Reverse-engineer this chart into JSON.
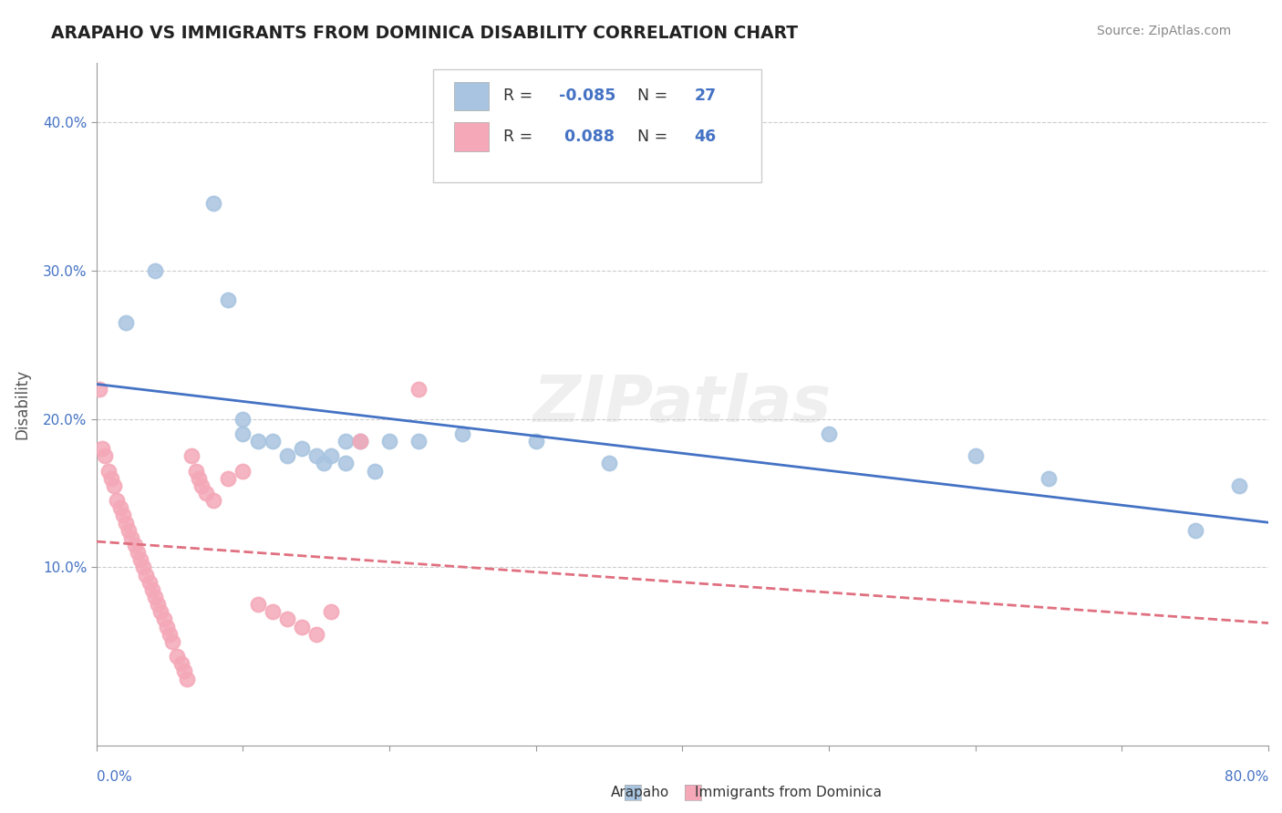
{
  "title": "ARAPAHO VS IMMIGRANTS FROM DOMINICA DISABILITY CORRELATION CHART",
  "source_text": "Source: ZipAtlas.com",
  "ylabel": "Disability",
  "xlim": [
    0,
    0.8
  ],
  "ylim": [
    -0.02,
    0.44
  ],
  "yticks": [
    0.1,
    0.2,
    0.3,
    0.4
  ],
  "ytick_labels": [
    "10.0%",
    "20.0%",
    "30.0%",
    "40.0%"
  ],
  "arapaho_color": "#a8c4e0",
  "dominica_color": "#f4a8b8",
  "arapaho_line_color": "#4472c4",
  "dominica_line_color": "#e07080",
  "background_color": "#ffffff",
  "grid_color": "#cccccc",
  "arapaho_x": [
    0.02,
    0.04,
    0.08,
    0.09,
    0.1,
    0.1,
    0.11,
    0.12,
    0.13,
    0.14,
    0.15,
    0.155,
    0.16,
    0.17,
    0.17,
    0.18,
    0.19,
    0.2,
    0.22,
    0.25,
    0.3,
    0.35,
    0.5,
    0.6,
    0.65,
    0.75,
    0.78
  ],
  "arapaho_y": [
    0.265,
    0.3,
    0.345,
    0.28,
    0.2,
    0.19,
    0.185,
    0.185,
    0.175,
    0.18,
    0.175,
    0.17,
    0.175,
    0.185,
    0.17,
    0.185,
    0.165,
    0.185,
    0.185,
    0.19,
    0.185,
    0.17,
    0.19,
    0.175,
    0.16,
    0.125,
    0.155
  ],
  "dominica_x": [
    0.002,
    0.004,
    0.006,
    0.008,
    0.01,
    0.012,
    0.014,
    0.016,
    0.018,
    0.02,
    0.022,
    0.024,
    0.026,
    0.028,
    0.03,
    0.032,
    0.034,
    0.036,
    0.038,
    0.04,
    0.042,
    0.044,
    0.046,
    0.048,
    0.05,
    0.052,
    0.055,
    0.058,
    0.06,
    0.062,
    0.065,
    0.068,
    0.07,
    0.072,
    0.075,
    0.08,
    0.09,
    0.1,
    0.11,
    0.12,
    0.13,
    0.14,
    0.15,
    0.16,
    0.18,
    0.22
  ],
  "dominica_y": [
    0.22,
    0.18,
    0.175,
    0.165,
    0.16,
    0.155,
    0.145,
    0.14,
    0.135,
    0.13,
    0.125,
    0.12,
    0.115,
    0.11,
    0.105,
    0.1,
    0.095,
    0.09,
    0.085,
    0.08,
    0.075,
    0.07,
    0.065,
    0.06,
    0.055,
    0.05,
    0.04,
    0.035,
    0.03,
    0.025,
    0.175,
    0.165,
    0.16,
    0.155,
    0.15,
    0.145,
    0.16,
    0.165,
    0.075,
    0.07,
    0.065,
    0.06,
    0.055,
    0.07,
    0.185,
    0.22
  ],
  "legend_text_color": "#4472c4",
  "legend_label_color": "#333333",
  "watermark_text": "ZIPatlas",
  "watermark_color": "lightgray",
  "watermark_alpha": 0.35
}
